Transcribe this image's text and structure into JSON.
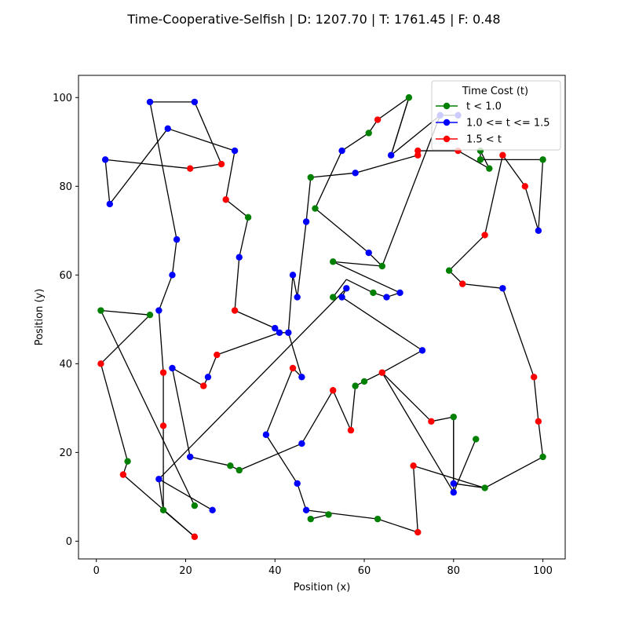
{
  "chart_data": {
    "type": "scatter",
    "title": "Time-Cooperative-Selfish | D: 1207.70 | T: 1761.45 | F: 0.48",
    "xlabel": "Position (x)",
    "ylabel": "Position (y)",
    "xlim": [
      -4,
      105
    ],
    "ylim": [
      -4,
      105
    ],
    "xticks": [
      0,
      20,
      40,
      60,
      80,
      100
    ],
    "yticks": [
      0,
      20,
      40,
      60,
      80,
      100
    ],
    "grid": false,
    "legend": {
      "title": "Time Cost (t)",
      "placement": "top-right",
      "entries": [
        {
          "label": "t < 1.0",
          "color": "#008000"
        },
        {
          "label": "1.0 <= t <= 1.5",
          "color": "#0000ff"
        },
        {
          "label": "1.5 < t",
          "color": "#ff0000"
        }
      ]
    },
    "line_color": "#000000",
    "points": [
      {
        "x": 12,
        "y": 99,
        "c": "b"
      },
      {
        "x": 22,
        "y": 99,
        "c": "b"
      },
      {
        "x": 28,
        "y": 85,
        "c": "r"
      },
      {
        "x": 21,
        "y": 84,
        "c": "r"
      },
      {
        "x": 2,
        "y": 86,
        "c": "b"
      },
      {
        "x": 3,
        "y": 76,
        "c": "b"
      },
      {
        "x": 16,
        "y": 93,
        "c": "b"
      },
      {
        "x": 31,
        "y": 88,
        "c": "b"
      },
      {
        "x": 29,
        "y": 77,
        "c": "r"
      },
      {
        "x": 34,
        "y": 73,
        "c": "g"
      },
      {
        "x": 32,
        "y": 64,
        "c": "b"
      },
      {
        "x": 31,
        "y": 52,
        "c": "r"
      },
      {
        "x": 40,
        "y": 48,
        "c": "b"
      },
      {
        "x": 41,
        "y": 47,
        "c": "b"
      },
      {
        "x": 44,
        "y": 60,
        "c": "b"
      },
      {
        "x": 45,
        "y": 55,
        "c": "b"
      },
      {
        "x": 47,
        "y": 72,
        "c": "b"
      },
      {
        "x": 49,
        "y": 75,
        "c": "g"
      },
      {
        "x": 55,
        "y": 88,
        "c": "b"
      },
      {
        "x": 61,
        "y": 92,
        "c": "g"
      },
      {
        "x": 63,
        "y": 95,
        "c": "r"
      },
      {
        "x": 70,
        "y": 100,
        "c": "g"
      },
      {
        "x": 66,
        "y": 87,
        "c": "b"
      },
      {
        "x": 77,
        "y": 96,
        "c": "b"
      },
      {
        "x": 81,
        "y": 96,
        "c": "b"
      },
      {
        "x": 81,
        "y": 88,
        "c": "r"
      },
      {
        "x": 86,
        "y": 88,
        "c": "g"
      },
      {
        "x": 86,
        "y": 86,
        "c": "g"
      },
      {
        "x": 88,
        "y": 84,
        "c": "g"
      },
      {
        "x": 96,
        "y": 80,
        "c": "r"
      },
      {
        "x": 99,
        "y": 70,
        "c": "b"
      },
      {
        "x": 100,
        "y": 86,
        "c": "g"
      },
      {
        "x": 91,
        "y": 87,
        "c": "r"
      },
      {
        "x": 87,
        "y": 69,
        "c": "r"
      },
      {
        "x": 79,
        "y": 61,
        "c": "g"
      },
      {
        "x": 82,
        "y": 58,
        "c": "r"
      },
      {
        "x": 91,
        "y": 57,
        "c": "b"
      },
      {
        "x": 98,
        "y": 37,
        "c": "r"
      },
      {
        "x": 99,
        "y": 27,
        "c": "r"
      },
      {
        "x": 100,
        "y": 19,
        "c": "g"
      },
      {
        "x": 80,
        "y": 11,
        "c": "b"
      },
      {
        "x": 85,
        "y": 23,
        "c": "g"
      },
      {
        "x": 80,
        "y": 28,
        "c": "g"
      },
      {
        "x": 80,
        "y": 13,
        "c": "b"
      },
      {
        "x": 87,
        "y": 12,
        "c": "g"
      },
      {
        "x": 64,
        "y": 38,
        "c": "r"
      },
      {
        "x": 75,
        "y": 27,
        "c": "r"
      },
      {
        "x": 73,
        "y": 43,
        "c": "b"
      },
      {
        "x": 55,
        "y": 55,
        "c": "b"
      },
      {
        "x": 56,
        "y": 57,
        "c": "b"
      },
      {
        "x": 53,
        "y": 55,
        "c": "g"
      },
      {
        "x": 14,
        "y": 14,
        "c": "b"
      },
      {
        "x": 26,
        "y": 7,
        "c": "b"
      },
      {
        "x": 12,
        "y": 51,
        "c": "g"
      },
      {
        "x": 1,
        "y": 52,
        "c": "g"
      },
      {
        "x": 22,
        "y": 8,
        "c": "g"
      },
      {
        "x": 15,
        "y": 7,
        "c": "g"
      },
      {
        "x": 15,
        "y": 26,
        "c": "r"
      },
      {
        "x": 15,
        "y": 38,
        "c": "r"
      },
      {
        "x": 14,
        "y": 52,
        "c": "b"
      },
      {
        "x": 17,
        "y": 60,
        "c": "b"
      },
      {
        "x": 18,
        "y": 68,
        "c": "b"
      },
      {
        "x": 7,
        "y": 18,
        "c": "g"
      },
      {
        "x": 1,
        "y": 40,
        "c": "r"
      },
      {
        "x": 6,
        "y": 15,
        "c": "r"
      },
      {
        "x": 22,
        "y": 1,
        "c": "r"
      },
      {
        "x": 17,
        "y": 39,
        "c": "b"
      },
      {
        "x": 21,
        "y": 19,
        "c": "b"
      },
      {
        "x": 30,
        "y": 17,
        "c": "g"
      },
      {
        "x": 32,
        "y": 16,
        "c": "g"
      },
      {
        "x": 46,
        "y": 22,
        "c": "b"
      },
      {
        "x": 38,
        "y": 24,
        "c": "b"
      },
      {
        "x": 44,
        "y": 39,
        "c": "r"
      },
      {
        "x": 46,
        "y": 37,
        "c": "b"
      },
      {
        "x": 43,
        "y": 47,
        "c": "b"
      },
      {
        "x": 27,
        "y": 42,
        "c": "r"
      },
      {
        "x": 25,
        "y": 37,
        "c": "b"
      },
      {
        "x": 24,
        "y": 35,
        "c": "r"
      },
      {
        "x": 45,
        "y": 13,
        "c": "b"
      },
      {
        "x": 47,
        "y": 7,
        "c": "b"
      },
      {
        "x": 48,
        "y": 5,
        "c": "g"
      },
      {
        "x": 52,
        "y": 6,
        "c": "g"
      },
      {
        "x": 63,
        "y": 5,
        "c": "g"
      },
      {
        "x": 72,
        "y": 2,
        "c": "r"
      },
      {
        "x": 71,
        "y": 17,
        "c": "r"
      },
      {
        "x": 58,
        "y": 35,
        "c": "g"
      },
      {
        "x": 60,
        "y": 36,
        "c": "g"
      },
      {
        "x": 53,
        "y": 34,
        "c": "r"
      },
      {
        "x": 57,
        "y": 25,
        "c": "r"
      },
      {
        "x": 48,
        "y": 82,
        "c": "g"
      },
      {
        "x": 58,
        "y": 83,
        "c": "b"
      },
      {
        "x": 72,
        "y": 87,
        "c": "r"
      },
      {
        "x": 72,
        "y": 88,
        "c": "r"
      },
      {
        "x": 61,
        "y": 65,
        "c": "b"
      },
      {
        "x": 53,
        "y": 63,
        "c": "g"
      },
      {
        "x": 64,
        "y": 62,
        "c": "g"
      },
      {
        "x": 62,
        "y": 56,
        "c": "g"
      },
      {
        "x": 65,
        "y": 55,
        "c": "b"
      },
      {
        "x": 68,
        "y": 56,
        "c": "b"
      }
    ],
    "segments": [
      [
        [
          12,
          99
        ],
        [
          22,
          99
        ]
      ],
      [
        [
          22,
          99
        ],
        [
          28,
          85
        ]
      ],
      [
        [
          28,
          85
        ],
        [
          21,
          84
        ]
      ],
      [
        [
          21,
          84
        ],
        [
          2,
          86
        ]
      ],
      [
        [
          2,
          86
        ],
        [
          3,
          76
        ]
      ],
      [
        [
          3,
          76
        ],
        [
          16,
          93
        ]
      ],
      [
        [
          16,
          93
        ],
        [
          31,
          88
        ]
      ],
      [
        [
          31,
          88
        ],
        [
          29,
          77
        ]
      ],
      [
        [
          29,
          77
        ],
        [
          34,
          73
        ]
      ],
      [
        [
          34,
          73
        ],
        [
          32,
          64
        ]
      ],
      [
        [
          32,
          64
        ],
        [
          31,
          52
        ]
      ],
      [
        [
          31,
          52
        ],
        [
          40,
          48
        ]
      ],
      [
        [
          40,
          48
        ],
        [
          41,
          47
        ]
      ],
      [
        [
          41,
          47
        ],
        [
          27,
          42
        ]
      ],
      [
        [
          27,
          42
        ],
        [
          25,
          37
        ]
      ],
      [
        [
          12,
          99
        ],
        [
          18,
          68
        ]
      ],
      [
        [
          18,
          68
        ],
        [
          17,
          60
        ]
      ],
      [
        [
          17,
          60
        ],
        [
          14,
          52
        ]
      ],
      [
        [
          14,
          52
        ],
        [
          15,
          38
        ]
      ],
      [
        [
          15,
          38
        ],
        [
          15,
          26
        ]
      ],
      [
        [
          15,
          26
        ],
        [
          15,
          7
        ]
      ],
      [
        [
          15,
          7
        ],
        [
          14,
          14
        ]
      ],
      [
        [
          14,
          14
        ],
        [
          26,
          7
        ]
      ],
      [
        [
          15,
          7
        ],
        [
          22,
          1
        ]
      ],
      [
        [
          22,
          1
        ],
        [
          6,
          15
        ]
      ],
      [
        [
          6,
          15
        ],
        [
          7,
          18
        ]
      ],
      [
        [
          7,
          18
        ],
        [
          1,
          40
        ]
      ],
      [
        [
          1,
          40
        ],
        [
          12,
          51
        ]
      ],
      [
        [
          12,
          51
        ],
        [
          1,
          52
        ]
      ],
      [
        [
          1,
          52
        ],
        [
          22,
          8
        ]
      ],
      [
        [
          17,
          39
        ],
        [
          21,
          19
        ]
      ],
      [
        [
          17,
          39
        ],
        [
          24,
          35
        ]
      ],
      [
        [
          21,
          19
        ],
        [
          30,
          17
        ]
      ],
      [
        [
          30,
          17
        ],
        [
          32,
          16
        ]
      ],
      [
        [
          32,
          16
        ],
        [
          46,
          22
        ]
      ],
      [
        [
          46,
          22
        ],
        [
          53,
          34
        ]
      ],
      [
        [
          53,
          34
        ],
        [
          57,
          25
        ]
      ],
      [
        [
          57,
          25
        ],
        [
          58,
          35
        ]
      ],
      [
        [
          58,
          35
        ],
        [
          60,
          36
        ]
      ],
      [
        [
          60,
          36
        ],
        [
          64,
          38
        ]
      ],
      [
        [
          64,
          38
        ],
        [
          73,
          43
        ]
      ],
      [
        [
          64,
          38
        ],
        [
          75,
          27
        ]
      ],
      [
        [
          75,
          27
        ],
        [
          80,
          28
        ]
      ],
      [
        [
          80,
          28
        ],
        [
          80,
          13
        ]
      ],
      [
        [
          80,
          13
        ],
        [
          87,
          12
        ]
      ],
      [
        [
          87,
          12
        ],
        [
          100,
          19
        ]
      ],
      [
        [
          64,
          38
        ],
        [
          80,
          11
        ]
      ],
      [
        [
          80,
          11
        ],
        [
          85,
          23
        ]
      ],
      [
        [
          80,
          28
        ],
        [
          80,
          11
        ]
      ],
      [
        [
          100,
          19
        ],
        [
          99,
          27
        ]
      ],
      [
        [
          99,
          27
        ],
        [
          98,
          37
        ]
      ],
      [
        [
          98,
          37
        ],
        [
          91,
          57
        ]
      ],
      [
        [
          91,
          57
        ],
        [
          82,
          58
        ]
      ],
      [
        [
          82,
          58
        ],
        [
          79,
          61
        ]
      ],
      [
        [
          79,
          61
        ],
        [
          87,
          69
        ]
      ],
      [
        [
          87,
          69
        ],
        [
          91,
          87
        ]
      ],
      [
        [
          91,
          87
        ],
        [
          96,
          80
        ]
      ],
      [
        [
          96,
          80
        ],
        [
          99,
          70
        ]
      ],
      [
        [
          99,
          70
        ],
        [
          100,
          86
        ]
      ],
      [
        [
          100,
          86
        ],
        [
          86,
          86
        ]
      ],
      [
        [
          86,
          86
        ],
        [
          86,
          88
        ]
      ],
      [
        [
          86,
          88
        ],
        [
          88,
          84
        ]
      ],
      [
        [
          88,
          84
        ],
        [
          81,
          88
        ]
      ],
      [
        [
          81,
          88
        ],
        [
          72,
          88
        ]
      ],
      [
        [
          72,
          88
        ],
        [
          72,
          87
        ]
      ],
      [
        [
          72,
          87
        ],
        [
          58,
          83
        ]
      ],
      [
        [
          58,
          83
        ],
        [
          48,
          82
        ]
      ],
      [
        [
          48,
          82
        ],
        [
          47,
          72
        ]
      ],
      [
        [
          47,
          72
        ],
        [
          45,
          55
        ]
      ],
      [
        [
          45,
          55
        ],
        [
          44,
          60
        ]
      ],
      [
        [
          44,
          60
        ],
        [
          43,
          47
        ]
      ],
      [
        [
          43,
          47
        ],
        [
          46,
          37
        ]
      ],
      [
        [
          46,
          37
        ],
        [
          44,
          39
        ]
      ],
      [
        [
          44,
          39
        ],
        [
          38,
          24
        ]
      ],
      [
        [
          38,
          24
        ],
        [
          45,
          13
        ]
      ],
      [
        [
          45,
          13
        ],
        [
          47,
          7
        ]
      ],
      [
        [
          47,
          7
        ],
        [
          63,
          5
        ]
      ],
      [
        [
          63,
          5
        ],
        [
          72,
          2
        ]
      ],
      [
        [
          72,
          2
        ],
        [
          71,
          17
        ]
      ],
      [
        [
          71,
          17
        ],
        [
          87,
          12
        ]
      ],
      [
        [
          48,
          5
        ],
        [
          52,
          6
        ]
      ],
      [
        [
          14,
          14
        ],
        [
          56,
          57
        ]
      ],
      [
        [
          56,
          57
        ],
        [
          55,
          55
        ]
      ],
      [
        [
          55,
          55
        ],
        [
          73,
          43
        ]
      ],
      [
        [
          53,
          63
        ],
        [
          64,
          62
        ]
      ],
      [
        [
          64,
          62
        ],
        [
          61,
          65
        ]
      ],
      [
        [
          61,
          65
        ],
        [
          49,
          75
        ]
      ],
      [
        [
          49,
          75
        ],
        [
          55,
          88
        ]
      ],
      [
        [
          55,
          88
        ],
        [
          61,
          92
        ]
      ],
      [
        [
          61,
          92
        ],
        [
          63,
          95
        ]
      ],
      [
        [
          66,
          87
        ],
        [
          70,
          100
        ]
      ],
      [
        [
          70,
          100
        ],
        [
          66,
          87
        ]
      ],
      [
        [
          66,
          87
        ],
        [
          77,
          96
        ]
      ],
      [
        [
          77,
          96
        ],
        [
          81,
          96
        ]
      ],
      [
        [
          64,
          62
        ],
        [
          77,
          96
        ]
      ],
      [
        [
          56,
          59
        ],
        [
          62,
          56
        ]
      ],
      [
        [
          62,
          56
        ],
        [
          65,
          55
        ]
      ],
      [
        [
          65,
          55
        ],
        [
          68,
          56
        ]
      ],
      [
        [
          68,
          56
        ],
        [
          53,
          63
        ]
      ],
      [
        [
          41,
          47
        ],
        [
          43,
          47
        ]
      ],
      [
        [
          24,
          35
        ],
        [
          25,
          37
        ]
      ],
      [
        [
          53,
          55
        ],
        [
          56,
          59
        ]
      ],
      [
        [
          63,
          95
        ],
        [
          70,
          100
        ]
      ]
    ]
  }
}
